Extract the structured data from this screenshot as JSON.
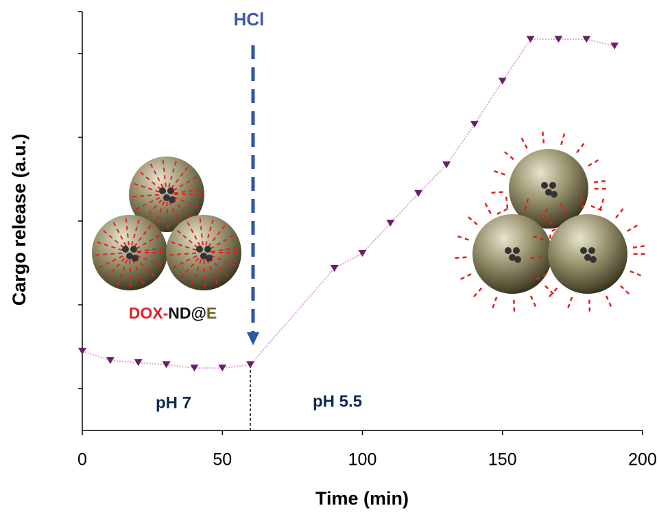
{
  "chart_data": {
    "type": "line",
    "xlabel": "Time (min)",
    "ylabel": "Cargo release (a.u.)",
    "x": [
      0,
      10,
      20,
      30,
      40,
      50,
      60,
      90,
      100,
      110,
      120,
      130,
      140,
      150,
      160,
      170,
      180,
      190
    ],
    "series": [
      {
        "color": "#6b1f6b",
        "line_color": "#d9a3d3",
        "values": [
          1.89,
          1.67,
          1.62,
          1.57,
          1.49,
          1.49,
          1.57,
          3.87,
          4.23,
          4.95,
          5.66,
          6.34,
          7.31,
          8.34,
          9.34,
          9.34,
          9.34,
          9.18
        ]
      }
    ],
    "xlim": [
      0,
      200
    ],
    "xticks": [
      0,
      50,
      100,
      150,
      200
    ],
    "ylim": [
      0,
      10
    ],
    "yticks": [
      1,
      3,
      5,
      7,
      9,
      10
    ],
    "annotations": {
      "acid": "HCl",
      "neutral_phase": "pH 7",
      "acid_phase": "pH 5.5",
      "particle_label": [
        "DOX-",
        "ND@",
        "E"
      ]
    }
  }
}
